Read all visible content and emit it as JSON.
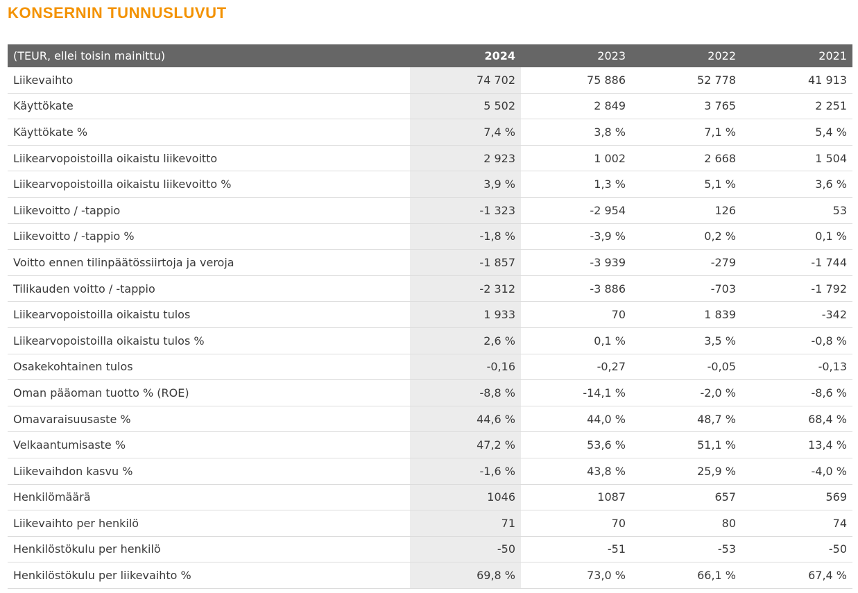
{
  "title": "KONSERNIN TUNNUSLUVUT",
  "table": {
    "header": [
      "(TEUR, ellei toisin mainittu)",
      "2024",
      "2023",
      "2022",
      "2021"
    ],
    "rows": [
      [
        "Liikevaihto",
        "74 702",
        "75 886",
        "52 778",
        "41 913"
      ],
      [
        "Käyttökate",
        "5 502",
        "2 849",
        "3 765",
        "2 251"
      ],
      [
        "Käyttökate %",
        "7,4 %",
        "3,8 %",
        "7,1 %",
        "5,4 %"
      ],
      [
        "Liikearvopoistoilla oikaistu liikevoitto",
        "2 923",
        "1 002",
        "2 668",
        "1 504"
      ],
      [
        "Liikearvopoistoilla oikaistu liikevoitto %",
        "3,9 %",
        "1,3 %",
        "5,1 %",
        "3,6 %"
      ],
      [
        "Liikevoitto / -tappio",
        "-1 323",
        "-2 954",
        "126",
        "53"
      ],
      [
        "Liikevoitto / -tappio %",
        "-1,8 %",
        "-3,9 %",
        "0,2 %",
        "0,1 %"
      ],
      [
        "Voitto ennen tilinpäätössiirtoja ja veroja",
        "-1 857",
        "-3 939",
        "-279",
        "-1 744"
      ],
      [
        "Tilikauden voitto / -tappio",
        "-2 312",
        "-3 886",
        "-703",
        "-1 792"
      ],
      [
        "Liikearvopoistoilla oikaistu tulos",
        "1 933",
        "70",
        "1 839",
        "-342"
      ],
      [
        "Liikearvopoistoilla oikaistu tulos %",
        "2,6 %",
        "0,1 %",
        "3,5 %",
        "-0,8 %"
      ],
      [
        "Osakekohtainen tulos",
        "-0,16",
        "-0,27",
        "-0,05",
        "-0,13"
      ],
      [
        "Oman pääoman tuotto % (ROE)",
        "-8,8 %",
        "-14,1 %",
        "-2,0 %",
        "-8,6 %"
      ],
      [
        "Omavaraisuusaste %",
        "44,6 %",
        "44,0 %",
        "48,7 %",
        "68,4 %"
      ],
      [
        "Velkaantumisaste %",
        "47,2 %",
        "53,6 %",
        "51,1 %",
        "13,4 %"
      ],
      [
        "Liikevaihdon kasvu %",
        "-1,6 %",
        "43,8 %",
        "25,9 %",
        "-4,0 %"
      ],
      [
        "Henkilömäärä",
        "1046",
        "1087",
        "657",
        "569"
      ],
      [
        "Liikevaihto per henkilö",
        "71",
        "70",
        "80",
        "74"
      ],
      [
        "Henkilöstökulu per henkilö",
        "-50",
        "-51",
        "-53",
        "-50"
      ],
      [
        "Henkilöstökulu per liikevaihto %",
        "69,8 %",
        "73,0 %",
        "66,1 %",
        "67,4 %"
      ]
    ]
  }
}
